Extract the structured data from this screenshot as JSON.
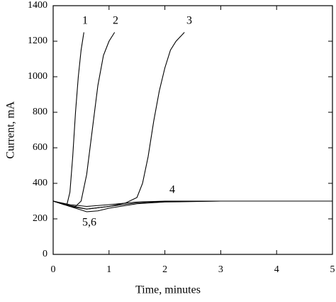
{
  "chart_data": {
    "type": "line",
    "x_label": "Time, minutes",
    "y_label": "Current, mA",
    "xlim": [
      0,
      5
    ],
    "ylim": [
      0,
      1400
    ],
    "xticks": [
      0,
      1,
      2,
      3,
      4,
      5
    ],
    "yticks": [
      0,
      200,
      400,
      600,
      800,
      1000,
      1200,
      1400
    ],
    "series": [
      {
        "name": "1",
        "color": "#000000",
        "x": [
          0,
          0.1,
          0.2,
          0.25,
          0.3,
          0.35,
          0.4,
          0.45,
          0.5,
          0.55
        ],
        "values": [
          300,
          290,
          280,
          285,
          350,
          550,
          800,
          1000,
          1150,
          1250
        ]
      },
      {
        "name": "2",
        "color": "#000000",
        "x": [
          0,
          0.2,
          0.4,
          0.5,
          0.6,
          0.7,
          0.8,
          0.9,
          1.0,
          1.1
        ],
        "values": [
          300,
          280,
          270,
          300,
          450,
          700,
          950,
          1120,
          1200,
          1250
        ]
      },
      {
        "name": "3",
        "color": "#000000",
        "x": [
          0,
          0.3,
          0.6,
          1.0,
          1.3,
          1.5,
          1.6,
          1.7,
          1.8,
          1.9,
          2.0,
          2.1,
          2.2,
          2.35
        ],
        "values": [
          300,
          270,
          255,
          270,
          290,
          320,
          400,
          550,
          750,
          920,
          1050,
          1150,
          1200,
          1250
        ]
      },
      {
        "name": "4",
        "color": "#000000",
        "x": [
          0,
          0.3,
          0.6,
          1.0,
          1.5,
          2,
          3,
          4,
          5
        ],
        "values": [
          300,
          280,
          270,
          280,
          295,
          300,
          300,
          300,
          300
        ]
      },
      {
        "name": "5,6",
        "color": "#000000",
        "x": [
          0,
          0.3,
          0.6,
          0.8,
          1.0,
          1.5,
          2,
          3,
          5
        ],
        "values": [
          300,
          270,
          240,
          245,
          260,
          285,
          295,
          300,
          300
        ]
      },
      {
        "color": "#000000",
        "x": [
          0,
          0.3,
          0.6,
          1.0,
          1.5,
          2,
          3,
          5
        ],
        "values": [
          300,
          275,
          255,
          270,
          290,
          298,
          300,
          300
        ]
      }
    ]
  }
}
